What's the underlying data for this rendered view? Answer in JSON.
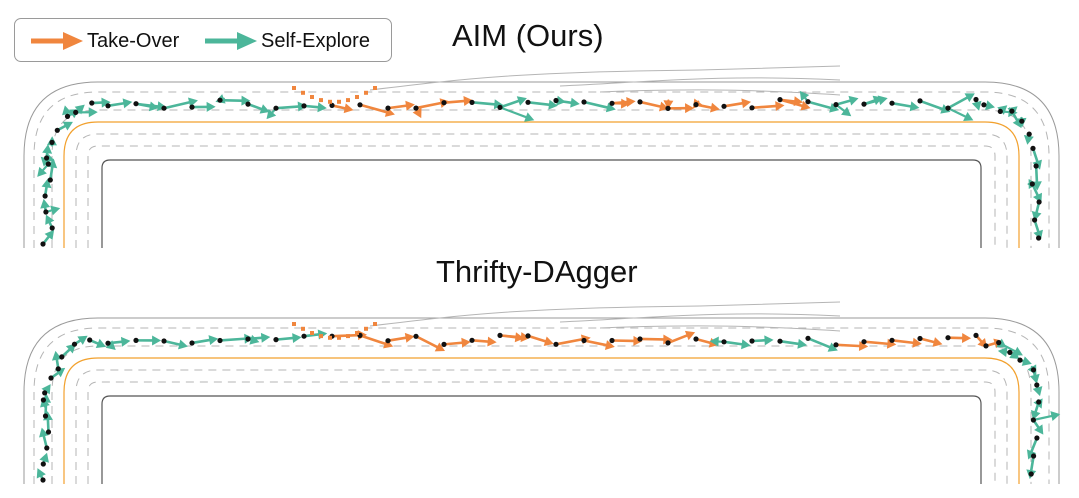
{
  "legend": {
    "items": [
      {
        "label": "Take-Over",
        "color": "#f0863e"
      },
      {
        "label": "Self-Explore",
        "color": "#4cb69a"
      }
    ]
  },
  "panels": [
    {
      "title": "AIM (Ours)"
    },
    {
      "title": "Thrifty-DAgger"
    }
  ],
  "colors": {
    "take_over": "#f0863e",
    "self_explore": "#4cb69a",
    "center_line": "#f2a12e",
    "road_edge": "#555555",
    "lane_dash": "#b5b5b5",
    "marker": "#111111",
    "shoulder": "#9a9a9a"
  }
}
